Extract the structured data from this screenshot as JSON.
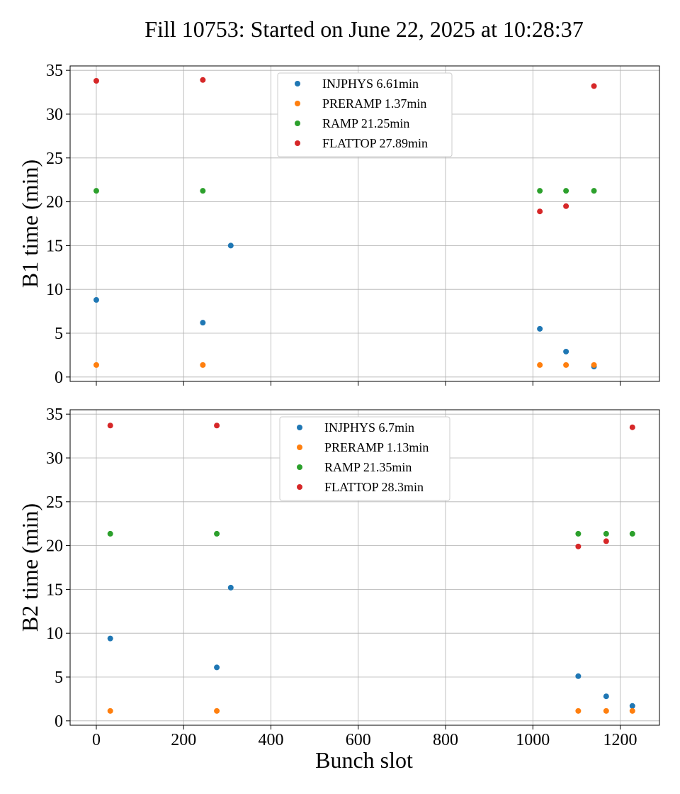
{
  "chart_data": {
    "type": "scatter",
    "title": "Fill 10753: Started on June 22, 2025 at 10:28:37",
    "xlabel": "Bunch slot",
    "xlim": [
      -60,
      1290
    ],
    "xticks": [
      0,
      200,
      400,
      600,
      800,
      1000,
      1200
    ],
    "colors": {
      "INJPHYS": "#1f77b4",
      "PRERAMP": "#ff7f0e",
      "RAMP": "#2ca02c",
      "FLATTOP": "#d62728"
    },
    "grid": true,
    "legend_location": "upper center",
    "panels": [
      {
        "ylabel": "B1 time (min)",
        "ylim": [
          -0.5,
          35.5
        ],
        "yticks": [
          0,
          5,
          10,
          15,
          20,
          25,
          30,
          35
        ],
        "series": [
          {
            "name": "INJPHYS 6.61min",
            "key": "INJPHYS",
            "x": [
              0,
              244,
              308,
              1016,
              1076,
              1140
            ],
            "y": [
              8.8,
              6.2,
              15.0,
              5.5,
              2.9,
              1.2
            ]
          },
          {
            "name": "PRERAMP 1.37min",
            "key": "PRERAMP",
            "x": [
              0,
              244,
              1016,
              1076,
              1140
            ],
            "y": [
              1.37,
              1.37,
              1.37,
              1.37,
              1.37
            ]
          },
          {
            "name": "RAMP 21.25min",
            "key": "RAMP",
            "x": [
              0,
              244,
              1016,
              1076,
              1140
            ],
            "y": [
              21.25,
              21.25,
              21.25,
              21.25,
              21.25
            ]
          },
          {
            "name": "FLATTOP 27.89min",
            "key": "FLATTOP",
            "x": [
              0,
              244,
              1016,
              1076,
              1140
            ],
            "y": [
              33.8,
              33.9,
              18.9,
              19.5,
              33.2
            ]
          }
        ]
      },
      {
        "ylabel": "B2 time (min)",
        "ylim": [
          -0.5,
          35.5
        ],
        "yticks": [
          0,
          5,
          10,
          15,
          20,
          25,
          30,
          35
        ],
        "series": [
          {
            "name": "INJPHYS 6.7min",
            "key": "INJPHYS",
            "x": [
              32,
              276,
              308,
              1104,
              1168,
              1228
            ],
            "y": [
              9.4,
              6.1,
              15.2,
              5.1,
              2.8,
              1.7
            ]
          },
          {
            "name": "PRERAMP 1.13min",
            "key": "PRERAMP",
            "x": [
              32,
              276,
              1104,
              1168,
              1228
            ],
            "y": [
              1.13,
              1.13,
              1.13,
              1.13,
              1.13
            ]
          },
          {
            "name": "RAMP 21.35min",
            "key": "RAMP",
            "x": [
              32,
              276,
              1104,
              1168,
              1228
            ],
            "y": [
              21.35,
              21.35,
              21.35,
              21.35,
              21.35
            ]
          },
          {
            "name": "FLATTOP 28.3min",
            "key": "FLATTOP",
            "x": [
              32,
              276,
              1104,
              1168,
              1228
            ],
            "y": [
              33.7,
              33.7,
              19.9,
              20.5,
              33.5
            ]
          }
        ]
      }
    ]
  }
}
